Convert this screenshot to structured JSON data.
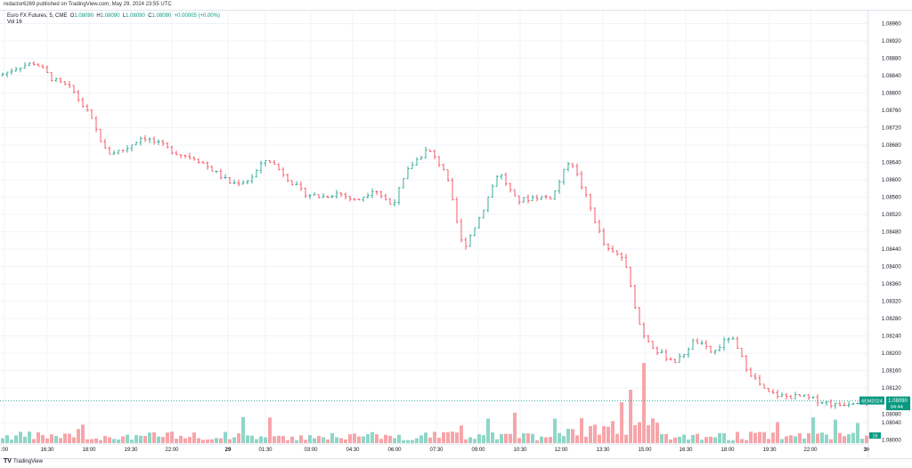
{
  "publisher": "redactor6269 published on TradingView.com, May 29, 2024 23:55 UTC",
  "legend": {
    "symbol": "Euro FX Futures, 5, CME",
    "o_label": "O",
    "o": "1.08090",
    "h_label": "H",
    "h": "1.08090",
    "l_label": "L",
    "l": "1.08090",
    "c_label": "C",
    "c": "1.08090",
    "change": "+0.00005 (+0.00%)",
    "vol_label": "Vol",
    "vol": "16"
  },
  "colors": {
    "up": "#089981",
    "down": "#f23645",
    "up_vol": "#8fd6c6",
    "down_vol": "#f7a5a9",
    "grid": "#f0f3fa"
  },
  "price_tag": {
    "contract": "6EM2024",
    "price": "1.08090",
    "countdown": "04:44"
  },
  "volume_tag": "16",
  "footer": "TradingView",
  "chart_data": {
    "type": "candlestick",
    "interval": "5",
    "y_ticks": [
      "1.08960",
      "1.08920",
      "1.08880",
      "1.08840",
      "1.08800",
      "1.08760",
      "1.08720",
      "1.08680",
      "1.08640",
      "1.08600",
      "1.08560",
      "1.08520",
      "1.08480",
      "1.08440",
      "1.08400",
      "1.08360",
      "1.08320",
      "1.08280",
      "1.08240",
      "1.08200",
      "1.08160",
      "1.08120",
      "1.08080",
      "1.08040",
      "1.08000"
    ],
    "ylim": [
      1.08,
      1.0896
    ],
    "x_ticks": [
      ":00",
      "16:30",
      "18:00",
      "19:30",
      "22:00",
      "29",
      "01:30",
      "03:00",
      "04:30",
      "06:00",
      "07:30",
      "09:00",
      "10:30",
      "12:00",
      "13:30",
      "15:00",
      "16:30",
      "18:00",
      "19:30",
      "22:00",
      "30"
    ],
    "close_path": [
      1.0884,
      1.0886,
      1.0887,
      1.0883,
      1.0881,
      1.0875,
      1.0866,
      1.0867,
      1.087,
      1.0868,
      1.0866,
      1.0865,
      1.0862,
      1.0859,
      1.086,
      1.0865,
      1.0861,
      1.0857,
      1.0856,
      1.0857,
      1.0855,
      1.0858,
      1.0854,
      1.0863,
      1.0867,
      1.0862,
      1.0844,
      1.0852,
      1.0862,
      1.0855,
      1.0856,
      1.0856,
      1.0865,
      1.0855,
      1.0844,
      1.0842,
      1.0825,
      1.082,
      1.0818,
      1.0823,
      1.082,
      1.0824,
      1.0816,
      1.0811,
      1.081,
      1.081,
      1.0809,
      1.0808,
      1.0809
    ],
    "last_price": 1.0809
  }
}
